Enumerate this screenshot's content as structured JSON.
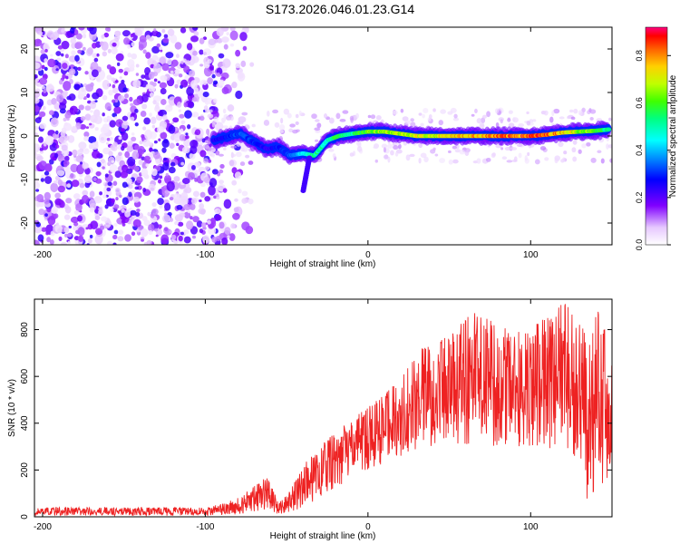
{
  "title": "S173.2026.046.01.23.G14",
  "chart_data": [
    {
      "type": "heatmap",
      "title": "",
      "xlabel": "Height of straight line (km)",
      "ylabel": "Frequency (Hz)",
      "xlim": [
        -205,
        150
      ],
      "ylim": [
        -25,
        25
      ],
      "xticks": [
        -200,
        -100,
        0,
        100
      ],
      "yticks": [
        -20,
        -10,
        0,
        10,
        20
      ],
      "colorbar": {
        "label": "Normalized spectral amplitude",
        "range": [
          0.0,
          0.92
        ],
        "ticks": [
          0.0,
          0.2,
          0.4,
          0.6,
          0.8
        ]
      },
      "ridge": [
        {
          "x": -95,
          "y": -1,
          "amp": 0.25
        },
        {
          "x": -85,
          "y": 0,
          "amp": 0.3
        },
        {
          "x": -78,
          "y": 0.5,
          "amp": 0.35
        },
        {
          "x": -70,
          "y": -1.5,
          "amp": 0.3
        },
        {
          "x": -62,
          "y": -3,
          "amp": 0.25
        },
        {
          "x": -55,
          "y": -2.5,
          "amp": 0.3
        },
        {
          "x": -48,
          "y": -4.5,
          "amp": 0.35
        },
        {
          "x": -40,
          "y": -4,
          "amp": 0.45
        },
        {
          "x": -33,
          "y": -4.5,
          "amp": 0.55
        },
        {
          "x": -25,
          "y": -1,
          "amp": 0.5
        },
        {
          "x": -18,
          "y": 0,
          "amp": 0.6
        },
        {
          "x": -10,
          "y": 0.5,
          "amp": 0.55
        },
        {
          "x": 0,
          "y": 1,
          "amp": 0.65
        },
        {
          "x": 10,
          "y": 1,
          "amp": 0.7
        },
        {
          "x": 20,
          "y": 0.5,
          "amp": 0.7
        },
        {
          "x": 30,
          "y": 0,
          "amp": 0.75
        },
        {
          "x": 40,
          "y": 0,
          "amp": 0.72
        },
        {
          "x": 50,
          "y": 0,
          "amp": 0.78
        },
        {
          "x": 60,
          "y": 0,
          "amp": 0.8
        },
        {
          "x": 70,
          "y": 0,
          "amp": 0.82
        },
        {
          "x": 80,
          "y": 0,
          "amp": 0.85
        },
        {
          "x": 90,
          "y": 0,
          "amp": 0.86
        },
        {
          "x": 100,
          "y": 0,
          "amp": 0.88
        },
        {
          "x": 110,
          "y": 0.3,
          "amp": 0.86
        },
        {
          "x": 120,
          "y": 0.8,
          "amp": 0.8
        },
        {
          "x": 130,
          "y": 1,
          "amp": 0.7
        },
        {
          "x": 140,
          "y": 1.2,
          "amp": 0.62
        },
        {
          "x": 148,
          "y": 1.5,
          "amp": 0.55
        }
      ]
    },
    {
      "type": "line",
      "title": "",
      "xlabel": "Height of straight line (km)",
      "ylabel": "SNR (10 * v/v)",
      "xlim": [
        -205,
        150
      ],
      "ylim": [
        0,
        930
      ],
      "xticks": [
        -200,
        -100,
        0,
        100
      ],
      "yticks": [
        0,
        200,
        400,
        600,
        800
      ],
      "series": [
        {
          "name": "SNR",
          "color": "#ee2222",
          "envelope": [
            {
              "x": -205,
              "low": 5,
              "high": 40
            },
            {
              "x": -100,
              "low": 5,
              "high": 40
            },
            {
              "x": -90,
              "low": 8,
              "high": 55
            },
            {
              "x": -80,
              "low": 10,
              "high": 80
            },
            {
              "x": -70,
              "low": 20,
              "high": 130
            },
            {
              "x": -62,
              "low": 30,
              "high": 175
            },
            {
              "x": -55,
              "low": 10,
              "high": 60
            },
            {
              "x": -48,
              "low": 20,
              "high": 110
            },
            {
              "x": -40,
              "low": 40,
              "high": 220
            },
            {
              "x": -30,
              "low": 80,
              "high": 300
            },
            {
              "x": -20,
              "low": 120,
              "high": 360
            },
            {
              "x": -10,
              "low": 160,
              "high": 420
            },
            {
              "x": 0,
              "low": 200,
              "high": 470
            },
            {
              "x": 10,
              "low": 230,
              "high": 520
            },
            {
              "x": 20,
              "low": 260,
              "high": 600
            },
            {
              "x": 30,
              "low": 280,
              "high": 700
            },
            {
              "x": 40,
              "low": 300,
              "high": 760
            },
            {
              "x": 50,
              "low": 300,
              "high": 780
            },
            {
              "x": 65,
              "low": 310,
              "high": 880
            },
            {
              "x": 80,
              "low": 300,
              "high": 820
            },
            {
              "x": 95,
              "low": 300,
              "high": 790
            },
            {
              "x": 105,
              "low": 300,
              "high": 830
            },
            {
              "x": 115,
              "low": 290,
              "high": 880
            },
            {
              "x": 120,
              "low": 280,
              "high": 920
            },
            {
              "x": 130,
              "low": 250,
              "high": 850
            },
            {
              "x": 135,
              "low": 60,
              "high": 760
            },
            {
              "x": 140,
              "low": 120,
              "high": 890
            },
            {
              "x": 145,
              "low": 100,
              "high": 860
            },
            {
              "x": 150,
              "low": 150,
              "high": 650
            }
          ]
        }
      ]
    }
  ]
}
